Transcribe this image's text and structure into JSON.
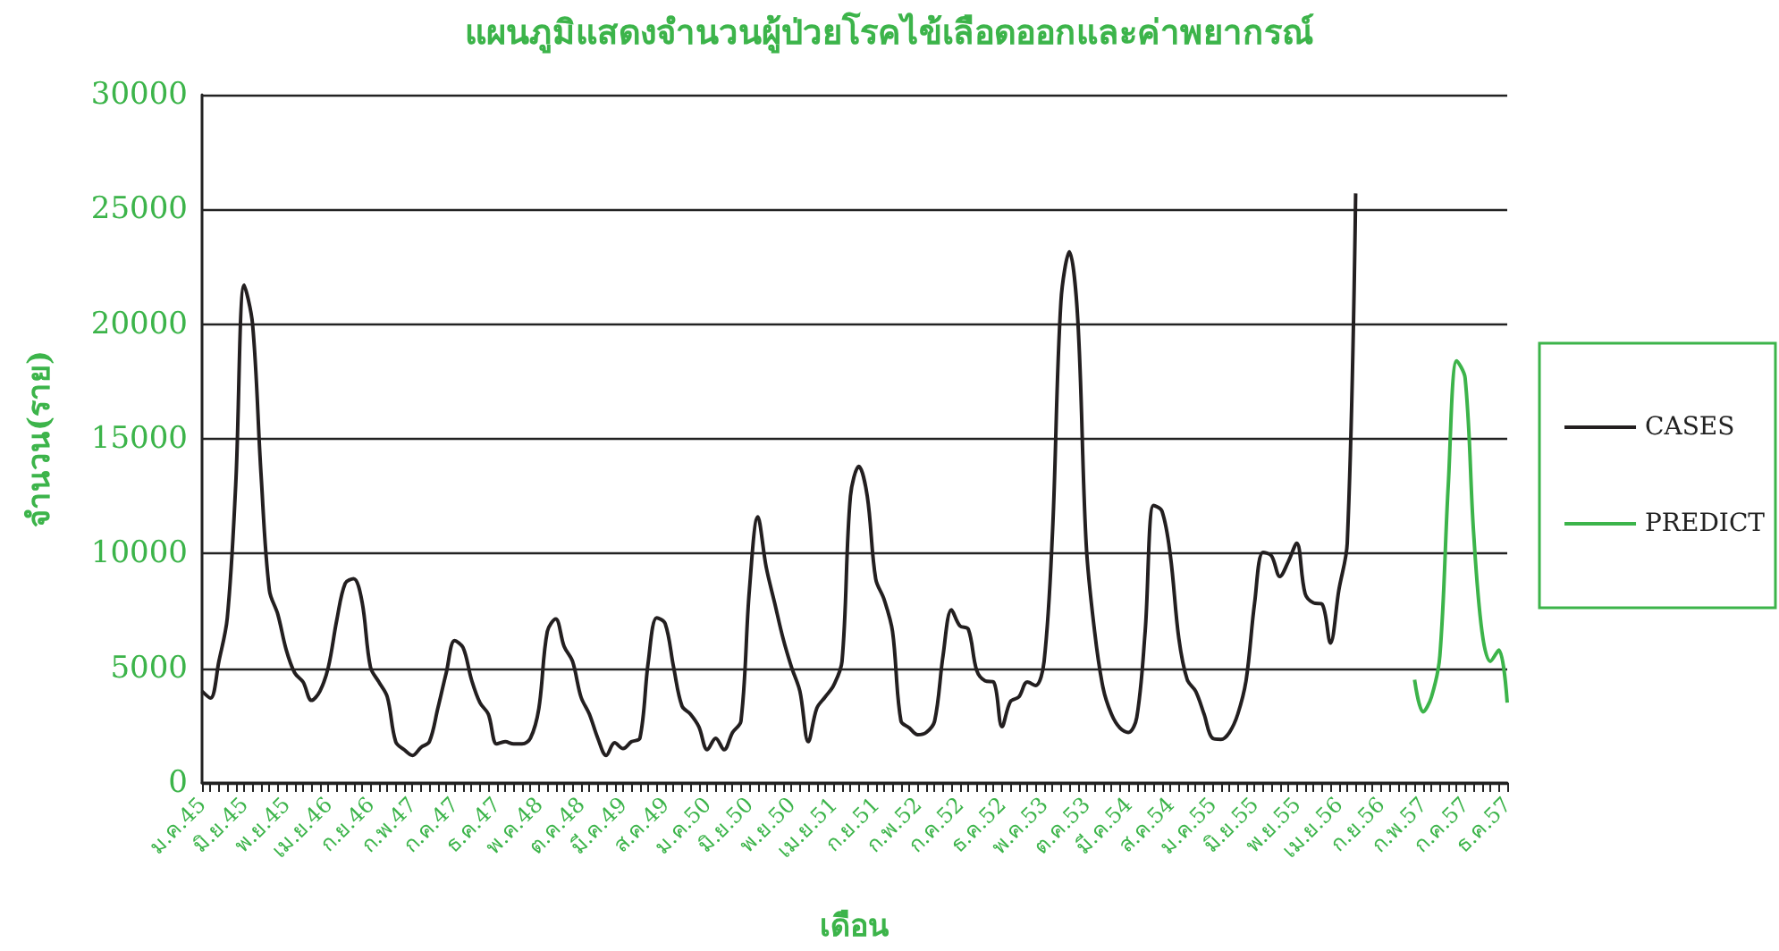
{
  "chart_data": {
    "type": "line",
    "title": "แผนภูมิแสดงจำนวนผู้ป่วยโรคไข้เลือดออกและค่าพยากรณ์",
    "xlabel": "เดือน",
    "ylabel": "จำนวน(ราย)",
    "categories": [
      "ม.ค.45",
      null,
      null,
      null,
      null,
      "มิ.ย.45",
      null,
      null,
      null,
      null,
      "พ.ย.45",
      null,
      null,
      null,
      null,
      "เม.ย.46",
      null,
      null,
      null,
      null,
      "ก.ย.46",
      null,
      null,
      null,
      null,
      "ก.พ.47",
      null,
      null,
      null,
      null,
      "ก.ค.47",
      null,
      null,
      null,
      null,
      "ธ.ค.47",
      null,
      null,
      null,
      null,
      "พ.ค.48",
      null,
      null,
      null,
      null,
      "ต.ค.48",
      null,
      null,
      null,
      null,
      "มี.ค.49",
      null,
      null,
      null,
      null,
      "ส.ค.49",
      null,
      null,
      null,
      null,
      "ม.ค.50",
      null,
      null,
      null,
      null,
      "มิ.ย.50",
      null,
      null,
      null,
      null,
      "พ.ย.50",
      null,
      null,
      null,
      null,
      "เม.ย.51",
      null,
      null,
      null,
      null,
      "ก.ย.51",
      null,
      null,
      null,
      null,
      "ก.พ.52",
      null,
      null,
      null,
      null,
      "ก.ค.52",
      null,
      null,
      null,
      null,
      "ธ.ค.52",
      null,
      null,
      null,
      null,
      "พ.ค.53",
      null,
      null,
      null,
      null,
      "ต.ค.53",
      null,
      null,
      null,
      null,
      "มี.ค.54",
      null,
      null,
      null,
      null,
      "ส.ค.54",
      null,
      null,
      null,
      null,
      "ม.ค.55",
      null,
      null,
      null,
      null,
      "มิ.ย.55",
      null,
      null,
      null,
      null,
      "พ.ย.55",
      null,
      null,
      null,
      null,
      "เม.ย.56",
      null,
      null,
      null,
      null,
      "ก.ย.56",
      null,
      null,
      null,
      null,
      "ก.พ.57",
      null,
      null,
      null,
      null,
      "ก.ค.57",
      null,
      null,
      null,
      null,
      "ธ.ค.57"
    ],
    "series": [
      {
        "name": "CASES",
        "color": "#231f20",
        "values": [
          4000,
          3700,
          5300,
          7200,
          13000,
          21700,
          20000,
          13500,
          8400,
          7350,
          5800,
          4800,
          4400,
          3600,
          4000,
          5050,
          7100,
          8700,
          8900,
          7900,
          5050,
          4400,
          3750,
          1800,
          1450,
          1200,
          1550,
          1800,
          3250,
          4800,
          6200,
          5900,
          4500,
          3500,
          3000,
          1700,
          1800,
          1700,
          1700,
          1950,
          3250,
          6600,
          7150,
          5950,
          5300,
          3750,
          3000,
          1950,
          1200,
          1750,
          1500,
          1800,
          1950,
          5300,
          7200,
          6950,
          5050,
          3350,
          3000,
          2450,
          1450,
          1950,
          1450,
          2200,
          2700,
          8400,
          11600,
          9400,
          7850,
          6300,
          5050,
          4000,
          1800,
          3250,
          3750,
          4250,
          5300,
          12500,
          13800,
          12500,
          8900,
          8000,
          6600,
          2700,
          2400,
          2100,
          2200,
          2700,
          5550,
          7550,
          6850,
          6700,
          4900,
          4450,
          4400,
          2450,
          3550,
          3750,
          4400,
          4250,
          5300,
          10950,
          21000,
          23150,
          20200,
          10400,
          6600,
          4150,
          3000,
          2400,
          2200,
          2850,
          6600,
          12100,
          11850,
          9900,
          6300,
          4500,
          4000,
          3000,
          1950,
          1900,
          2200,
          3000,
          4500,
          7850,
          10050,
          9900,
          9000,
          9650,
          10450,
          8250,
          7850,
          7800,
          6100,
          8400,
          10450,
          25700,
          null,
          null,
          null,
          null,
          null,
          null,
          null,
          null,
          null,
          null,
          null,
          null,
          null,
          null,
          null,
          null,
          null,
          null
        ]
      },
      {
        "name": "PREDICT",
        "color": "#3cb44a",
        "values": [
          null,
          null,
          null,
          null,
          null,
          null,
          null,
          null,
          null,
          null,
          null,
          null,
          null,
          null,
          null,
          null,
          null,
          null,
          null,
          null,
          null,
          null,
          null,
          null,
          null,
          null,
          null,
          null,
          null,
          null,
          null,
          null,
          null,
          null,
          null,
          null,
          null,
          null,
          null,
          null,
          null,
          null,
          null,
          null,
          null,
          null,
          null,
          null,
          null,
          null,
          null,
          null,
          null,
          null,
          null,
          null,
          null,
          null,
          null,
          null,
          null,
          null,
          null,
          null,
          null,
          null,
          null,
          null,
          null,
          null,
          null,
          null,
          null,
          null,
          null,
          null,
          null,
          null,
          null,
          null,
          null,
          null,
          null,
          null,
          null,
          null,
          null,
          null,
          null,
          null,
          null,
          null,
          null,
          null,
          null,
          null,
          null,
          null,
          null,
          null,
          null,
          null,
          null,
          null,
          null,
          null,
          null,
          null,
          null,
          null,
          null,
          null,
          null,
          null,
          null,
          null,
          null,
          null,
          null,
          null,
          null,
          null,
          null,
          null,
          null,
          null,
          null,
          null,
          null,
          null,
          null,
          null,
          null,
          null,
          null,
          null,
          null,
          null,
          null,
          null,
          null,
          null,
          null,
          null,
          4500,
          3100,
          3750,
          5550,
          13000,
          18400,
          17650,
          10950,
          6600,
          5300,
          5800,
          3500
        ]
      }
    ],
    "ylim": [
      0,
      30000
    ],
    "yticks": [
      0,
      5000,
      10000,
      15000,
      20000,
      25000,
      30000
    ],
    "grid": "y",
    "legend": "right"
  }
}
